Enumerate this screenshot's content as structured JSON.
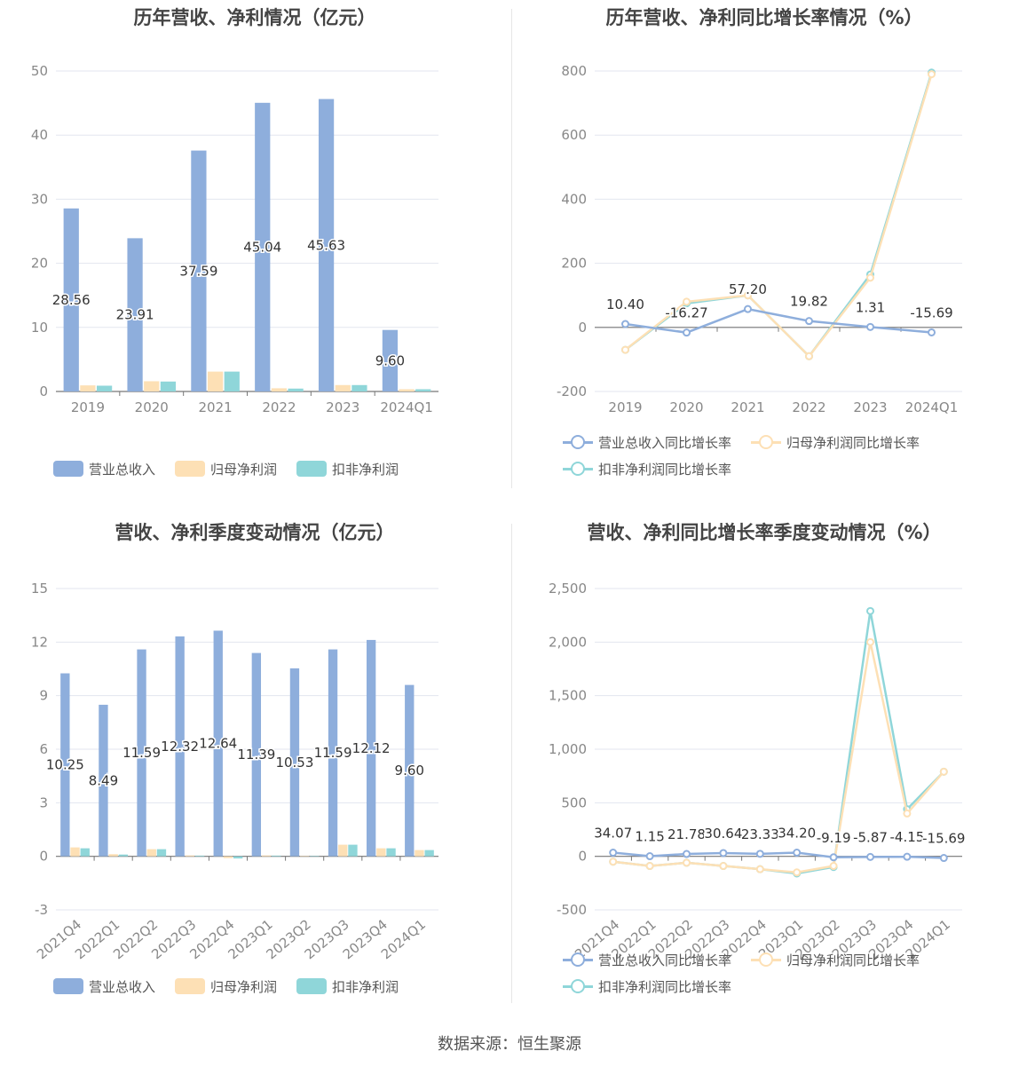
{
  "source": "数据来源：恒生聚源",
  "charts": [
    {
      "id": "annual_amount",
      "title": "历年营收、净利情况（亿元）",
      "chart_data": {
        "type": "bar",
        "categories": [
          "2019",
          "2020",
          "2021",
          "2022",
          "2023",
          "2024Q1"
        ],
        "ylim": [
          0,
          50
        ],
        "yticks": [
          0,
          10,
          20,
          30,
          40,
          50
        ],
        "ytick_labels": [
          "0",
          "10",
          "20",
          "30",
          "40",
          "50"
        ],
        "series": [
          {
            "name": "营业总收入",
            "color": "#8eaedc",
            "values": [
              28.56,
              23.91,
              37.59,
              45.04,
              45.63,
              9.6
            ],
            "labels": [
              "28.56",
              "23.91",
              "37.59",
              "45.04",
              "45.63",
              "9.60"
            ]
          },
          {
            "name": "归母净利润",
            "color": "#fde0b5",
            "values": [
              0.95,
              1.6,
              3.1,
              0.5,
              1.0,
              0.35
            ]
          },
          {
            "name": "扣非净利润",
            "color": "#8fd6d9",
            "values": [
              0.9,
              1.55,
              3.1,
              0.45,
              1.0,
              0.35
            ]
          }
        ]
      }
    },
    {
      "id": "annual_growth",
      "title": "历年营收、净利同比增长率情况（%）",
      "chart_data": {
        "type": "line",
        "categories": [
          "2019",
          "2020",
          "2021",
          "2022",
          "2023",
          "2024Q1"
        ],
        "ylim": [
          -200,
          800
        ],
        "yticks": [
          -200,
          0,
          200,
          400,
          600,
          800
        ],
        "ytick_labels": [
          "-200",
          "0",
          "200",
          "400",
          "600",
          "800"
        ],
        "series": [
          {
            "name": "营业总收入同比增长率",
            "color": "#8eaedc",
            "values": [
              10.4,
              -16.27,
              57.2,
              19.82,
              1.31,
              -15.69
            ],
            "labels": [
              "10.40",
              "-16.27",
              "57.20",
              "19.82",
              "1.31",
              "-15.69"
            ]
          },
          {
            "name": "归母净利润同比增长率",
            "color": "#fde0b5",
            "values": [
              -70,
              80,
              100,
              -90,
              155,
              790
            ]
          },
          {
            "name": "扣非净利润同比增长率",
            "color": "#8fd6d9",
            "values": [
              -70,
              75,
              100,
              -90,
              165,
              795
            ]
          }
        ]
      }
    },
    {
      "id": "quarterly_amount",
      "title": "营收、净利季度变动情况（亿元）",
      "chart_data": {
        "type": "bar",
        "categories": [
          "2021Q4",
          "2022Q1",
          "2022Q2",
          "2022Q3",
          "2022Q4",
          "2023Q1",
          "2023Q2",
          "2023Q3",
          "2023Q4",
          "2024Q1"
        ],
        "ylim": [
          -3,
          15
        ],
        "yticks": [
          -3,
          0,
          3,
          6,
          9,
          12,
          15
        ],
        "ytick_labels": [
          "-3",
          "0",
          "3",
          "6",
          "9",
          "12",
          "15"
        ],
        "series": [
          {
            "name": "营业总收入",
            "color": "#8eaedc",
            "values": [
              10.25,
              8.49,
              11.59,
              12.32,
              12.64,
              11.39,
              10.53,
              11.59,
              12.12,
              9.6
            ],
            "labels": [
              "10.25",
              "8.49",
              "11.59",
              "12.32",
              "12.64",
              "11.39",
              "10.53",
              "11.59",
              "12.12",
              "9.60"
            ]
          },
          {
            "name": "归母净利润",
            "color": "#fde0b5",
            "values": [
              0.5,
              0.12,
              0.4,
              0.05,
              -0.1,
              0.05,
              0.02,
              0.65,
              0.45,
              0.35
            ]
          },
          {
            "name": "扣非净利润",
            "color": "#8fd6d9",
            "values": [
              0.45,
              0.1,
              0.4,
              0.04,
              -0.12,
              0.04,
              0.02,
              0.65,
              0.45,
              0.35
            ]
          }
        ]
      }
    },
    {
      "id": "quarterly_growth",
      "title": "营收、净利同比增长率季度变动情况（%）",
      "chart_data": {
        "type": "line",
        "categories": [
          "2021Q4",
          "2022Q1",
          "2022Q2",
          "2022Q3",
          "2022Q4",
          "2023Q1",
          "2023Q2",
          "2023Q3",
          "2023Q4",
          "2024Q1"
        ],
        "ylim": [
          -500,
          2500
        ],
        "yticks": [
          -500,
          0,
          500,
          1000,
          1500,
          2000,
          2500
        ],
        "ytick_labels": [
          "-500",
          "0",
          "500",
          "1,000",
          "1,500",
          "2,000",
          "2,500"
        ],
        "series": [
          {
            "name": "营业总收入同比增长率",
            "color": "#8eaedc",
            "values": [
              34.07,
              1.15,
              21.78,
              30.64,
              23.33,
              34.2,
              -9.19,
              -5.87,
              -4.15,
              -15.69
            ],
            "labels": [
              "34.07",
              "1.15",
              "21.78",
              "30.64",
              "23.33",
              "34.20",
              "-9.19",
              "-5.87",
              "-4.15",
              "-15.69"
            ]
          },
          {
            "name": "归母净利润同比增长率",
            "color": "#fde0b5",
            "values": [
              -50,
              -90,
              -60,
              -90,
              -120,
              -150,
              -90,
              2000,
              400,
              790
            ]
          },
          {
            "name": "扣非净利润同比增长率",
            "color": "#8fd6d9",
            "values": [
              -50,
              -90,
              -60,
              -90,
              -120,
              -160,
              -100,
              2290,
              440,
              790
            ]
          }
        ]
      }
    }
  ]
}
